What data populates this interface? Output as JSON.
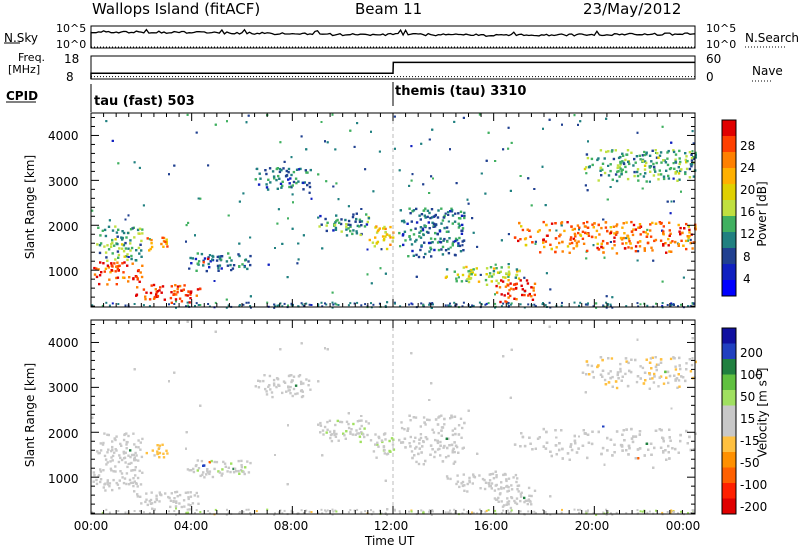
{
  "header": {
    "station": "Wallops Island (fitACF)",
    "beam": "Beam 11",
    "date": "23/May/2012"
  },
  "top_panels": {
    "nsky_label": "N.Sky",
    "nsearch_label": "N.Search",
    "nsky_ticks": [
      "10^5",
      "10^0"
    ],
    "nsearch_ticks": [
      "10^5",
      "10^0"
    ],
    "freq_label": "Freq.",
    "freq_unit": "[MHz]",
    "freq_ticks": [
      "18",
      "8"
    ],
    "nave_label": "Nave",
    "nave_ticks": [
      "60",
      "0"
    ],
    "cpid_label": "CPID",
    "cpid_modes": [
      {
        "name": "tau (fast) 503",
        "start_hour": 0
      },
      {
        "name": "themis (tau) 3310",
        "start_hour": 12
      }
    ]
  },
  "axes": {
    "xlabel": "Time UT",
    "x_ticks": [
      "00:00",
      "04:00",
      "08:00",
      "12:00",
      "16:00",
      "20:00",
      "00:00"
    ],
    "ylabel": "Slant Range [km]",
    "y_ticks": [
      "1000",
      "2000",
      "3000",
      "4000"
    ]
  },
  "power_colorbar": {
    "label": "Power [dB]",
    "ticks": [
      "28",
      "24",
      "20",
      "16",
      "12",
      "8",
      "4"
    ],
    "colors": [
      "#e00000",
      "#ff4000",
      "#ff8000",
      "#ffb000",
      "#e0d000",
      "#c0e040",
      "#40b060",
      "#208080",
      "#204090",
      "#1020c0",
      "#0000ff"
    ]
  },
  "velocity_colorbar": {
    "label": "Velocity [m s",
    "label_sup": "-1",
    "label_end": "]",
    "ticks": [
      "200",
      "100",
      "50",
      "15",
      "-15",
      "-50",
      "-100",
      "-200"
    ],
    "colors": [
      "#1010a0",
      "#2040c0",
      "#208040",
      "#60c040",
      "#a0e060",
      "#c8c8c8",
      "#c8c8c8",
      "#ffc040",
      "#ff9000",
      "#ff6000",
      "#ff2000",
      "#e00000"
    ]
  },
  "chart_data": [
    {
      "type": "line",
      "title": "N.Sky / N.Search",
      "x_range": [
        0,
        24
      ],
      "series": [
        {
          "name": "N.Sky",
          "style": "solid",
          "x": [
            0,
            2,
            4,
            6,
            8,
            10,
            12,
            14,
            16,
            18,
            20,
            22,
            24
          ],
          "y": [
            3.7,
            3.6,
            3.5,
            3.4,
            3.2,
            3.0,
            3.1,
            3.0,
            2.9,
            2.9,
            3.0,
            3.1,
            3.2
          ]
        },
        {
          "name": "N.Search",
          "style": "dotted",
          "x": [
            0,
            24
          ],
          "y": [
            0,
            0
          ]
        }
      ]
    },
    {
      "type": "line",
      "title": "Freq. / Nave",
      "x_range": [
        0,
        24
      ],
      "series": [
        {
          "name": "Freq. [MHz]",
          "style": "solid",
          "x": [
            0,
            0.01,
            12,
            12.01,
            24
          ],
          "y": [
            10.5,
            10.5,
            10.5,
            15.2,
            15.2
          ]
        },
        {
          "name": "Nave",
          "style": "dotted",
          "x": [
            0,
            24
          ],
          "y": [
            1,
            1
          ]
        }
      ]
    },
    {
      "type": "heatmap",
      "xlabel": "Time UT",
      "ylabel": "Slant Range [km]",
      "xlim": [
        0,
        24
      ],
      "ylim": [
        180,
        4500
      ],
      "colorbar": "Power [dB]",
      "value_range": [
        0,
        32
      ],
      "regions": [
        {
          "t0": 0.0,
          "t1": 2.0,
          "r0": 700,
          "r1": 1200,
          "value": 28
        },
        {
          "t0": 0.2,
          "t1": 2.0,
          "r0": 1200,
          "r1": 2000,
          "value": 12
        },
        {
          "t0": 1.7,
          "t1": 4.3,
          "r0": 300,
          "r1": 700,
          "value": 30
        },
        {
          "t0": 2.0,
          "t1": 3.0,
          "r0": 1450,
          "r1": 1750,
          "value": 24
        },
        {
          "t0": 3.8,
          "t1": 6.3,
          "r0": 1000,
          "r1": 1400,
          "value": 8
        },
        {
          "t0": 4.4,
          "t1": 4.7,
          "r0": 1150,
          "r1": 1300,
          "value": 26
        },
        {
          "t0": 6.5,
          "t1": 8.7,
          "r0": 2800,
          "r1": 3300,
          "value": 8
        },
        {
          "t0": 9.0,
          "t1": 11.0,
          "r0": 1800,
          "r1": 2300,
          "value": 10
        },
        {
          "t0": 11.0,
          "t1": 12.0,
          "r0": 1450,
          "r1": 2000,
          "value": 20
        },
        {
          "t0": 12.2,
          "t1": 14.8,
          "r0": 1300,
          "r1": 2400,
          "value": 8
        },
        {
          "t0": 14.0,
          "t1": 17.0,
          "r0": 700,
          "r1": 1100,
          "value": 16
        },
        {
          "t0": 16.0,
          "t1": 17.6,
          "r0": 300,
          "r1": 800,
          "value": 30
        },
        {
          "t0": 16.8,
          "t1": 24.0,
          "r0": 1400,
          "r1": 2100,
          "value": 26
        },
        {
          "t0": 19.5,
          "t1": 24.0,
          "r0": 3000,
          "r1": 3700,
          "value": 12
        }
      ]
    },
    {
      "type": "heatmap",
      "xlabel": "Time UT",
      "ylabel": "Slant Range [km]",
      "xlim": [
        0,
        24
      ],
      "ylim": [
        180,
        4500
      ],
      "colorbar": "Velocity [m s-1]",
      "value_range": [
        -240,
        240
      ],
      "regions": [
        {
          "t0": 0.0,
          "t1": 2.0,
          "r0": 700,
          "r1": 1200,
          "value": 0
        },
        {
          "t0": 0.2,
          "t1": 2.0,
          "r0": 1200,
          "r1": 2000,
          "value": 0
        },
        {
          "t0": 1.7,
          "t1": 4.3,
          "r0": 300,
          "r1": 700,
          "value": 0
        },
        {
          "t0": 2.0,
          "t1": 3.0,
          "r0": 1450,
          "r1": 1750,
          "value": -60
        },
        {
          "t0": 3.8,
          "t1": 6.3,
          "r0": 1000,
          "r1": 1400,
          "value": 30
        },
        {
          "t0": 4.4,
          "t1": 4.7,
          "r0": 1150,
          "r1": 1300,
          "value": 220
        },
        {
          "t0": 6.5,
          "t1": 8.7,
          "r0": 2800,
          "r1": 3300,
          "value": 0
        },
        {
          "t0": 9.0,
          "t1": 11.0,
          "r0": 1800,
          "r1": 2300,
          "value": 30
        },
        {
          "t0": 11.0,
          "t1": 12.0,
          "r0": 1450,
          "r1": 2000,
          "value": 30
        },
        {
          "t0": 12.2,
          "t1": 14.8,
          "r0": 1300,
          "r1": 2400,
          "value": 0
        },
        {
          "t0": 14.0,
          "t1": 17.0,
          "r0": 700,
          "r1": 1100,
          "value": 0
        },
        {
          "t0": 16.0,
          "t1": 17.6,
          "r0": 300,
          "r1": 800,
          "value": 0
        },
        {
          "t0": 16.8,
          "t1": 24.0,
          "r0": 1400,
          "r1": 2100,
          "value": 0
        },
        {
          "t0": 19.5,
          "t1": 24.0,
          "r0": 3000,
          "r1": 3700,
          "value": -40
        }
      ]
    }
  ]
}
